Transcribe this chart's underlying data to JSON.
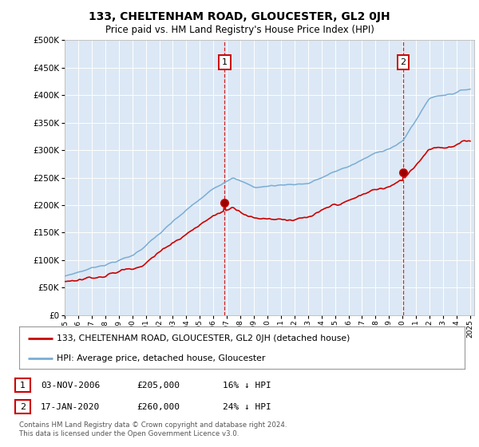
{
  "title": "133, CHELTENHAM ROAD, GLOUCESTER, GL2 0JH",
  "subtitle": "Price paid vs. HM Land Registry's House Price Index (HPI)",
  "ylim": [
    0,
    500000
  ],
  "yticks": [
    0,
    50000,
    100000,
    150000,
    200000,
    250000,
    300000,
    350000,
    400000,
    450000,
    500000
  ],
  "sale1_year": 2006.833,
  "sale1_price": 205000,
  "sale2_year": 2020.042,
  "sale2_price": 260000,
  "sale1_date": "03-NOV-2006",
  "sale2_date": "17-JAN-2020",
  "sale1_pct": "16% ↓ HPI",
  "sale2_pct": "24% ↓ HPI",
  "line_color_property": "#cc0000",
  "line_color_hpi": "#7aadd4",
  "bg_color": "#dce8f5",
  "grid_color": "#ffffff",
  "box_color": "#cc0000",
  "legend_label_property": "133, CHELTENHAM ROAD, GLOUCESTER, GL2 0JH (detached house)",
  "legend_label_hpi": "HPI: Average price, detached house, Gloucester",
  "footnote": "Contains HM Land Registry data © Crown copyright and database right 2024.\nThis data is licensed under the Open Government Licence v3.0."
}
